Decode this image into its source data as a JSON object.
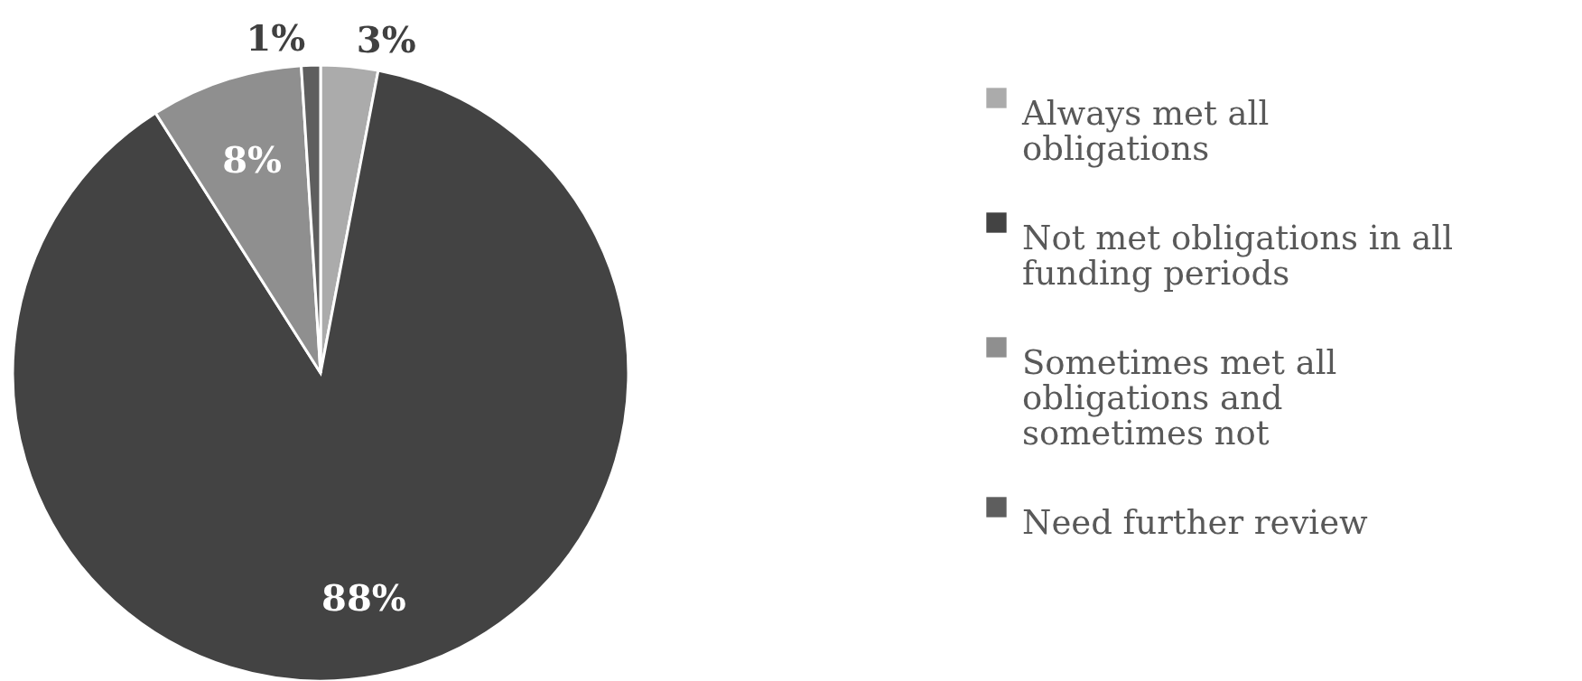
{
  "chart_data": {
    "type": "pie",
    "categories": [
      "Always met all obligations",
      "Not met obligations in all funding periods",
      "Sometimes met all obligations and sometimes not",
      "Need further review"
    ],
    "values": [
      3,
      88,
      8,
      1
    ],
    "colors": [
      "#ababab",
      "#434343",
      "#8f8f8f",
      "#5e5e5e"
    ],
    "value_labels": [
      "3%",
      "88%",
      "8%",
      "1%"
    ],
    "legend": "right"
  }
}
